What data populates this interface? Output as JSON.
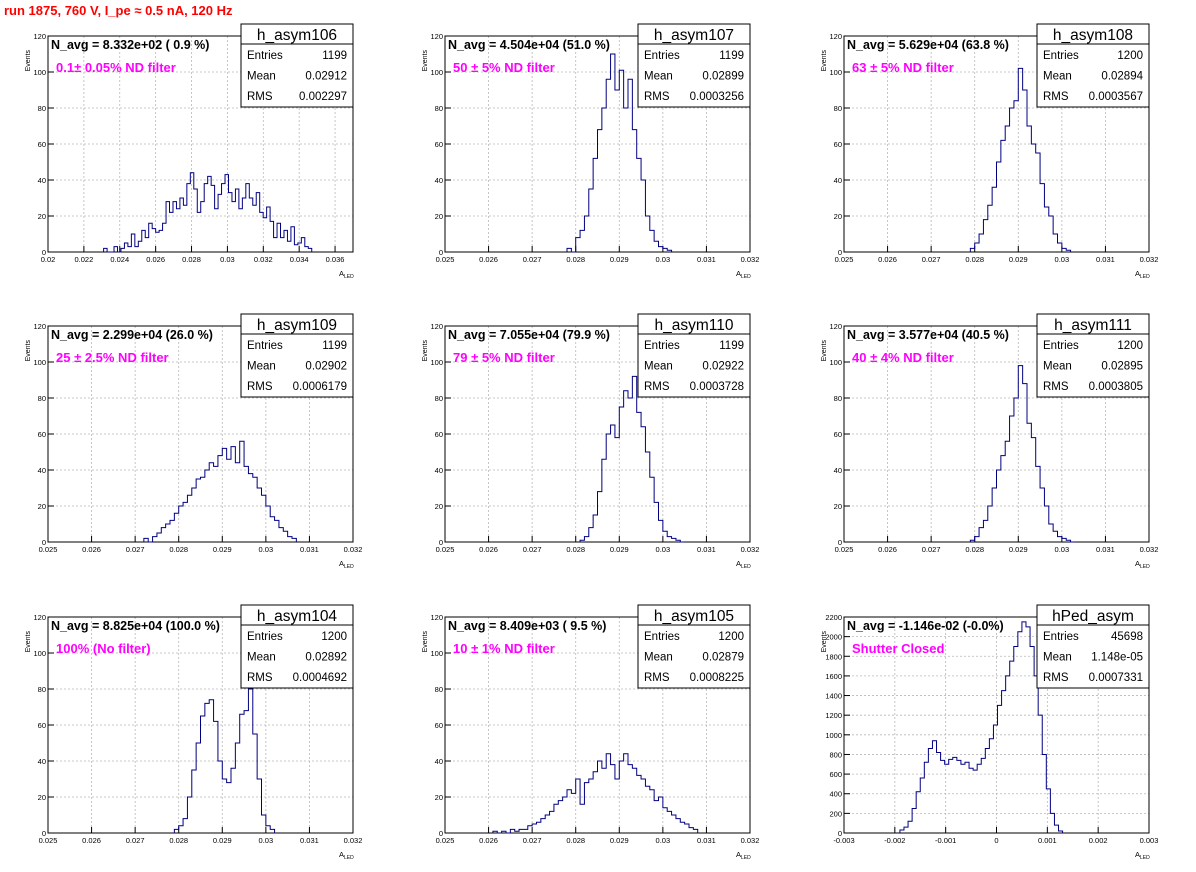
{
  "page_title": "run 1875,   760 V, I_pe ≈ 0.5 nA, 120 Hz",
  "colors": {
    "histogram": "#000080",
    "annotation": "#ff00ff",
    "title": "#ff0000"
  },
  "chart_data": [
    {
      "type": "histogram",
      "name": "h_asym106",
      "navg_text": "N_avg = 8.332e+02 ( 0.9 %)",
      "note": "0.1± 0.05% ND filter",
      "stats": [
        [
          "Entries",
          "1199"
        ],
        [
          "Mean",
          "0.02912"
        ],
        [
          "RMS",
          "0.002297"
        ]
      ],
      "xlabel": "A",
      "xlabel_sub": "LED",
      "ylabel": "Events",
      "xlim": [
        0.02,
        0.037
      ],
      "ylim": [
        0,
        120
      ],
      "xticks": [
        "0.02",
        "0.022",
        "0.024",
        "0.026",
        "0.028",
        "0.03",
        "0.032",
        "0.034",
        "0.036"
      ],
      "xtick_values": [
        0.02,
        0.022,
        0.024,
        0.026,
        0.028,
        0.03,
        0.032,
        0.034,
        0.036
      ],
      "yticks": [
        0,
        20,
        40,
        60,
        80,
        100,
        120
      ],
      "bins": {
        "x0": 0.0231,
        "x1": 0.0347,
        "counts": [
          2,
          0,
          0,
          3,
          0,
          2,
          5,
          3,
          10,
          3,
          6,
          12,
          8,
          16,
          13,
          11,
          12,
          16,
          28,
          22,
          28,
          24,
          30,
          26,
          38,
          44,
          35,
          22,
          28,
          38,
          42,
          37,
          24,
          32,
          38,
          43,
          33,
          28,
          35,
          24,
          30,
          38,
          30,
          26,
          33,
          22,
          19,
          25,
          17,
          8,
          16,
          8,
          12,
          6,
          14,
          4,
          5,
          8,
          3,
          2
        ]
      }
    },
    {
      "type": "histogram",
      "name": "h_asym107",
      "navg_text": "N_avg = 4.504e+04 (51.0 %)",
      "note": "50 ± 5% ND filter",
      "stats": [
        [
          "Entries",
          "1199"
        ],
        [
          "Mean",
          "0.02899"
        ],
        [
          "RMS",
          "0.0003256"
        ]
      ],
      "xlabel": "A",
      "xlabel_sub": "LED",
      "ylabel": "Events",
      "xlim": [
        0.025,
        0.032
      ],
      "ylim": [
        0,
        120
      ],
      "xticks": [
        "0.025",
        "0.026",
        "0.027",
        "0.028",
        "0.029",
        "0.03",
        "0.031",
        "0.032"
      ],
      "xtick_values": [
        0.025,
        0.026,
        0.027,
        0.028,
        0.029,
        0.03,
        0.031,
        0.032
      ],
      "yticks": [
        0,
        20,
        40,
        60,
        80,
        100,
        120
      ],
      "bins": {
        "x0": 0.0278,
        "x1": 0.0302,
        "counts": [
          2,
          0,
          8,
          12,
          20,
          35,
          52,
          68,
          80,
          96,
          110,
          90,
          101,
          80,
          96,
          68,
          52,
          40,
          20,
          12,
          6,
          3,
          2,
          1
        ]
      }
    },
    {
      "type": "histogram",
      "name": "h_asym108",
      "navg_text": "N_avg = 5.629e+04 (63.8 %)",
      "note": "63 ± 5% ND filter",
      "stats": [
        [
          "Entries",
          "1200"
        ],
        [
          "Mean",
          "0.02894"
        ],
        [
          "RMS",
          "0.0003567"
        ]
      ],
      "xlabel": "A",
      "xlabel_sub": "LED",
      "ylabel": "Events",
      "xlim": [
        0.025,
        0.032
      ],
      "ylim": [
        0,
        120
      ],
      "xticks": [
        "0.025",
        "0.026",
        "0.027",
        "0.028",
        "0.029",
        "0.03",
        "0.031",
        "0.032"
      ],
      "xtick_values": [
        0.025,
        0.026,
        0.027,
        0.028,
        0.029,
        0.03,
        0.031,
        0.032
      ],
      "yticks": [
        0,
        20,
        40,
        60,
        80,
        100,
        120
      ],
      "bins": {
        "x0": 0.0279,
        "x1": 0.0302,
        "counts": [
          2,
          5,
          10,
          18,
          26,
          36,
          50,
          62,
          70,
          80,
          84,
          102,
          90,
          70,
          60,
          55,
          38,
          25,
          20,
          10,
          5,
          2,
          1
        ]
      }
    },
    {
      "type": "histogram",
      "name": "h_asym109",
      "navg_text": "N_avg = 2.299e+04 (26.0 %)",
      "note": "25 ± 2.5% ND filter",
      "stats": [
        [
          "Entries",
          "1199"
        ],
        [
          "Mean",
          "0.02902"
        ],
        [
          "RMS",
          "0.0006179"
        ]
      ],
      "xlabel": "A",
      "xlabel_sub": "LED",
      "ylabel": "Events",
      "xlim": [
        0.025,
        0.032
      ],
      "ylim": [
        0,
        120
      ],
      "xticks": [
        "0.025",
        "0.026",
        "0.027",
        "0.028",
        "0.029",
        "0.03",
        "0.031",
        "0.032"
      ],
      "xtick_values": [
        0.025,
        0.026,
        0.027,
        0.028,
        0.029,
        0.03,
        0.031,
        0.032
      ],
      "yticks": [
        0,
        20,
        40,
        60,
        80,
        100,
        120
      ],
      "bins": {
        "x0": 0.0272,
        "x1": 0.0307,
        "counts": [
          2,
          0,
          3,
          5,
          8,
          10,
          12,
          16,
          20,
          22,
          26,
          30,
          35,
          36,
          40,
          44,
          42,
          48,
          52,
          46,
          53,
          44,
          56,
          42,
          38,
          36,
          30,
          26,
          20,
          14,
          12,
          8,
          6,
          3,
          2
        ]
      }
    },
    {
      "type": "histogram",
      "name": "h_asym110",
      "navg_text": "N_avg = 7.055e+04 (79.9 %)",
      "note": "79 ± 5% ND filter",
      "stats": [
        [
          "Entries",
          "1199"
        ],
        [
          "Mean",
          "0.02922"
        ],
        [
          "RMS",
          "0.0003728"
        ]
      ],
      "xlabel": "A",
      "xlabel_sub": "LED",
      "ylabel": "Events",
      "xlim": [
        0.025,
        0.032
      ],
      "ylim": [
        0,
        120
      ],
      "xticks": [
        "0.025",
        "0.026",
        "0.027",
        "0.028",
        "0.029",
        "0.03",
        "0.031",
        "0.032"
      ],
      "xtick_values": [
        0.025,
        0.026,
        0.027,
        0.028,
        0.029,
        0.03,
        0.031,
        0.032
      ],
      "yticks": [
        0,
        20,
        40,
        60,
        80,
        100,
        120
      ],
      "bins": {
        "x0": 0.0281,
        "x1": 0.0305,
        "counts": [
          1,
          3,
          8,
          15,
          28,
          46,
          60,
          65,
          58,
          75,
          84,
          80,
          92,
          72,
          64,
          50,
          36,
          22,
          12,
          6,
          3,
          2,
          1,
          0
        ]
      }
    },
    {
      "type": "histogram",
      "name": "h_asym111",
      "navg_text": "N_avg = 3.577e+04 (40.5 %)",
      "note": "40 ± 4% ND filter",
      "stats": [
        [
          "Entries",
          "1200"
        ],
        [
          "Mean",
          "0.02895"
        ],
        [
          "RMS",
          "0.0003805"
        ]
      ],
      "xlabel": "A",
      "xlabel_sub": "LED",
      "ylabel": "Events",
      "xlim": [
        0.025,
        0.032
      ],
      "ylim": [
        0,
        120
      ],
      "xticks": [
        "0.025",
        "0.026",
        "0.027",
        "0.028",
        "0.029",
        "0.03",
        "0.031",
        "0.032"
      ],
      "xtick_values": [
        0.025,
        0.026,
        0.027,
        0.028,
        0.029,
        0.03,
        0.031,
        0.032
      ],
      "yticks": [
        0,
        20,
        40,
        60,
        80,
        100,
        120
      ],
      "bins": {
        "x0": 0.0279,
        "x1": 0.0303,
        "counts": [
          1,
          3,
          8,
          12,
          20,
          30,
          40,
          48,
          56,
          70,
          80,
          98,
          88,
          66,
          58,
          42,
          30,
          20,
          10,
          6,
          3,
          2,
          1,
          0
        ]
      }
    },
    {
      "type": "histogram",
      "name": "h_asym104",
      "navg_text": "N_avg = 8.825e+04 (100.0 %)",
      "note": "100% (No filter)",
      "stats": [
        [
          "Entries",
          "1200"
        ],
        [
          "Mean",
          "0.02892"
        ],
        [
          "RMS",
          "0.0004692"
        ]
      ],
      "xlabel": "A",
      "xlabel_sub": "LED",
      "ylabel": "Events",
      "xlim": [
        0.025,
        0.032
      ],
      "ylim": [
        0,
        120
      ],
      "xticks": [
        "0.025",
        "0.026",
        "0.027",
        "0.028",
        "0.029",
        "0.03",
        "0.031",
        "0.032"
      ],
      "xtick_values": [
        0.025,
        0.026,
        0.027,
        0.028,
        0.029,
        0.03,
        0.031,
        0.032
      ],
      "yticks": [
        0,
        20,
        40,
        60,
        80,
        100,
        120
      ],
      "bins": {
        "x0": 0.0279,
        "x1": 0.0302,
        "counts": [
          2,
          4,
          8,
          20,
          35,
          50,
          65,
          72,
          74,
          62,
          40,
          30,
          28,
          36,
          50,
          66,
          68,
          80,
          55,
          30,
          10,
          4,
          2
        ]
      }
    },
    {
      "type": "histogram",
      "name": "h_asym105",
      "navg_text": "N_avg = 8.409e+03 ( 9.5 %)",
      "note": "10 ± 1% ND filter",
      "stats": [
        [
          "Entries",
          "1200"
        ],
        [
          "Mean",
          "0.02879"
        ],
        [
          "RMS",
          "0.0008225"
        ]
      ],
      "xlabel": "A",
      "xlabel_sub": "LED",
      "ylabel": "Events",
      "xlim": [
        0.025,
        0.032
      ],
      "ylim": [
        0,
        120
      ],
      "xticks": [
        "0.025",
        "0.026",
        "0.027",
        "0.028",
        "0.029",
        "0.03",
        "0.031",
        "0.032"
      ],
      "xtick_values": [
        0.025,
        0.026,
        0.027,
        0.028,
        0.029,
        0.03,
        0.031,
        0.032
      ],
      "yticks": [
        0,
        20,
        40,
        60,
        80,
        100,
        120
      ],
      "bins": {
        "x0": 0.0261,
        "x1": 0.0308,
        "counts": [
          1,
          0,
          1,
          0,
          2,
          1,
          2,
          2,
          4,
          5,
          6,
          8,
          10,
          12,
          16,
          18,
          20,
          24,
          22,
          30,
          16,
          28,
          30,
          34,
          40,
          36,
          44,
          38,
          30,
          40,
          44,
          38,
          36,
          32,
          30,
          26,
          24,
          18,
          20,
          14,
          12,
          10,
          8,
          6,
          5,
          3,
          2
        ]
      }
    },
    {
      "type": "histogram",
      "name": "hPed_asym",
      "navg_text": "N_avg = -1.146e-02 (-0.0%)",
      "note": "Shutter Closed",
      "stats": [
        [
          "Entries",
          "45698"
        ],
        [
          "Mean",
          "1.148e-05"
        ],
        [
          "RMS",
          "0.0007331"
        ]
      ],
      "xlabel": "A",
      "xlabel_sub": "LED",
      "ylabel": "Events",
      "xlim": [
        -0.003,
        0.003
      ],
      "ylim": [
        0,
        2200
      ],
      "xticks": [
        "-0.003",
        "-0.002",
        "-0.001",
        "0",
        "0.001",
        "0.002",
        "0.003"
      ],
      "xtick_values": [
        -0.003,
        -0.002,
        -0.001,
        0,
        0.001,
        0.002,
        0.003
      ],
      "yticks": [
        0,
        200,
        400,
        600,
        800,
        1000,
        1200,
        1400,
        1600,
        1800,
        2000,
        2200
      ],
      "bins": {
        "x0": -0.0019,
        "x1": 0.0013,
        "counts": [
          30,
          60,
          120,
          250,
          420,
          560,
          720,
          860,
          940,
          820,
          740,
          700,
          750,
          770,
          740,
          700,
          720,
          660,
          640,
          700,
          760,
          860,
          960,
          1100,
          1300,
          1450,
          1600,
          1750,
          1900,
          2050,
          2150,
          2100,
          1900,
          1600,
          1200,
          800,
          450,
          200,
          80,
          20
        ]
      }
    }
  ]
}
